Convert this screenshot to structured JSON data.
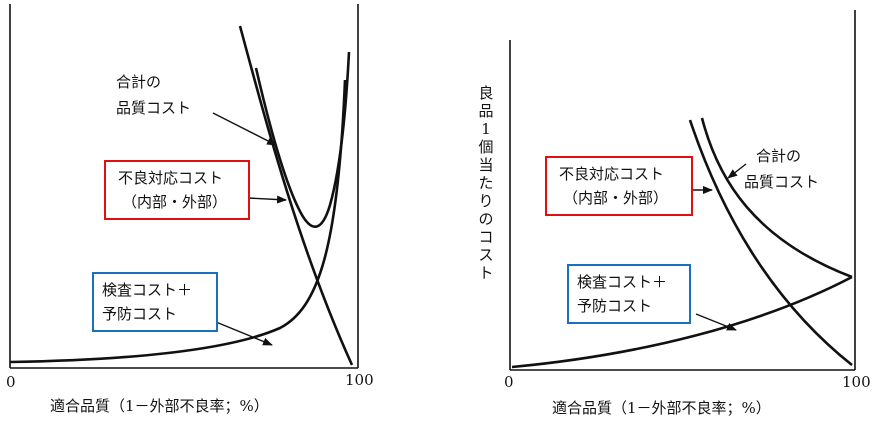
{
  "colors": {
    "line": "#111111",
    "red_box": "#e01010",
    "blue_box": "#1a6fbf"
  },
  "left_panel": {
    "total_cost_label": [
      "合計の",
      "品質コスト"
    ],
    "failure_box": [
      "不良対応コスト",
      "（内部・外部）"
    ],
    "appraisal_box": [
      "検査コスト＋",
      "予防コスト"
    ],
    "x_start": "0",
    "x_end": "100",
    "x_axis_label": "適合品質（1－外部不良率；%）"
  },
  "right_panel": {
    "y_axis_label": [
      "良",
      "品",
      "1",
      "個",
      "当",
      "た",
      "り",
      "の",
      "コ",
      "ス",
      "ト"
    ],
    "total_cost_label": [
      "合計の",
      "品質コスト"
    ],
    "failure_box": [
      "不良対応コスト",
      "（内部・外部）"
    ],
    "appraisal_box": [
      "検査コスト＋",
      "予防コスト"
    ],
    "x_start": "0",
    "x_end": "100",
    "x_axis_label": "適合品質（1－外部不良率；%）"
  }
}
